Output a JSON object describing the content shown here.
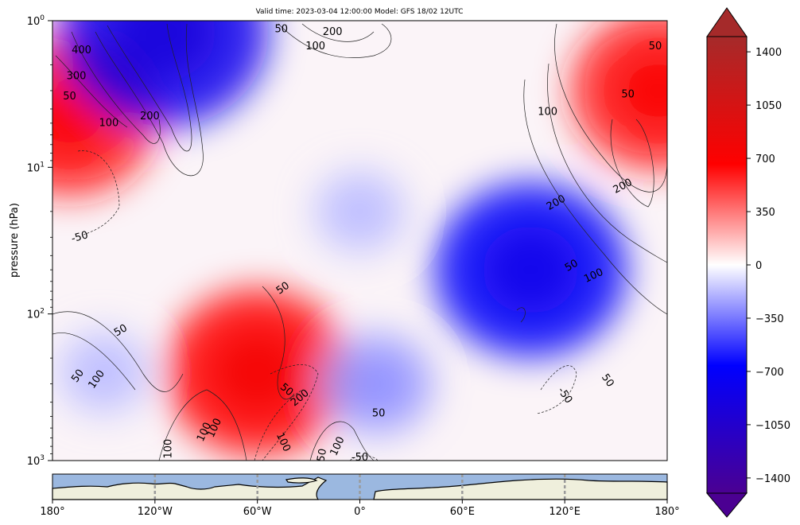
{
  "chart_data": {
    "type": "heatmap",
    "title": "Valid time: 2023-03-04 12:00:00 Model: GFS 18/02 12UTC",
    "ylabel": "pressure (hPa)",
    "yscale": "log",
    "ylim": [
      1000,
      1
    ],
    "xlim": [
      -180,
      180
    ],
    "y_ticks": [
      {
        "value": 1,
        "base": "10",
        "exp": "0"
      },
      {
        "value": 10,
        "base": "10",
        "exp": "1"
      },
      {
        "value": 100,
        "base": "10",
        "exp": "2"
      },
      {
        "value": 1000,
        "base": "10",
        "exp": "3"
      }
    ],
    "x_ticks": [
      {
        "value": -180,
        "label": "180°"
      },
      {
        "value": -120,
        "label": "120°W"
      },
      {
        "value": -60,
        "label": "60°W"
      },
      {
        "value": 0,
        "label": "0°"
      },
      {
        "value": 60,
        "label": "60°E"
      },
      {
        "value": 120,
        "label": "120°E"
      },
      {
        "value": 180,
        "label": "180°"
      }
    ],
    "colorbar": {
      "min": -1500,
      "max": 1500,
      "extend": "both",
      "colors": [
        "#4b0092",
        "#0000ff",
        "#ffffff",
        "#ff0000",
        "#a52a2a"
      ],
      "ticks": [
        {
          "value": 1400,
          "label": "1400"
        },
        {
          "value": 1050,
          "label": "1050"
        },
        {
          "value": 700,
          "label": "700"
        },
        {
          "value": 350,
          "label": "350"
        },
        {
          "value": 0,
          "label": "0"
        },
        {
          "value": -350,
          "label": "−350"
        },
        {
          "value": -700,
          "label": "−700"
        },
        {
          "value": -1050,
          "label": "−1050"
        },
        {
          "value": -1400,
          "label": "−1400"
        }
      ]
    },
    "field_centers": [
      {
        "lon": -170,
        "p": 4.5,
        "value": 600
      },
      {
        "lon": -115,
        "p": 1.2,
        "value": -800
      },
      {
        "lon": -60,
        "p": 250,
        "value": 650
      },
      {
        "lon": 100,
        "p": 50,
        "value": -700
      },
      {
        "lon": 175,
        "p": 3,
        "value": 600
      },
      {
        "lon": 10,
        "p": 300,
        "value": -250
      },
      {
        "lon": -150,
        "p": 250,
        "value": -150
      },
      {
        "lon": 0,
        "p": 20,
        "value": -150
      }
    ],
    "contour_labels": [
      {
        "text": "400",
        "lon": -163,
        "p": 1.6,
        "rot": 0
      },
      {
        "text": "300",
        "lon": -166,
        "p": 2.4,
        "rot": 0
      },
      {
        "text": "50",
        "lon": -170,
        "p": 3.3,
        "rot": 0
      },
      {
        "text": "100",
        "lon": -147,
        "p": 5.0,
        "rot": 0
      },
      {
        "text": "200",
        "lon": -123,
        "p": 4.5,
        "rot": 0
      },
      {
        "text": "50",
        "lon": -46,
        "p": 1.15,
        "rot": 0
      },
      {
        "text": "200",
        "lon": -16,
        "p": 1.2,
        "rot": 0
      },
      {
        "text": "100",
        "lon": -26,
        "p": 1.5,
        "rot": 0
      },
      {
        "text": "100",
        "lon": 110,
        "p": 4.2,
        "rot": 0
      },
      {
        "text": "50",
        "lon": 157,
        "p": 3.2,
        "rot": 0
      },
      {
        "text": "50",
        "lon": 173,
        "p": 1.5,
        "rot": 0
      },
      {
        "text": "200",
        "lon": 154,
        "p": 13.5,
        "rot": -28
      },
      {
        "text": "200",
        "lon": 115,
        "p": 17.5,
        "rot": -30
      },
      {
        "text": "50",
        "lon": 124,
        "p": 47,
        "rot": -30
      },
      {
        "text": "100",
        "lon": 137,
        "p": 55,
        "rot": -25
      },
      {
        "text": "-50",
        "lon": -164,
        "p": 30,
        "rot": -15
      },
      {
        "text": "50",
        "lon": -45,
        "p": 67,
        "rot": -35
      },
      {
        "text": "50",
        "lon": -140,
        "p": 130,
        "rot": -30
      },
      {
        "text": "50",
        "lon": -165,
        "p": 265,
        "rot": -55
      },
      {
        "text": "100",
        "lon": -154,
        "p": 280,
        "rot": -55
      },
      {
        "text": "50",
        "lon": -43,
        "p": 330,
        "rot": 40
      },
      {
        "text": "200",
        "lon": -35,
        "p": 375,
        "rot": -40
      },
      {
        "text": "-50",
        "lon": 120,
        "p": 360,
        "rot": 55
      },
      {
        "text": "50",
        "lon": 145,
        "p": 285,
        "rot": 55
      },
      {
        "text": "50",
        "lon": 11,
        "p": 480,
        "rot": 0
      },
      {
        "text": "100",
        "lon": -85,
        "p": 600,
        "rot": -65
      },
      {
        "text": "100",
        "lon": -91,
        "p": 640,
        "rot": -65
      },
      {
        "text": "100",
        "lon": -45,
        "p": 750,
        "rot": 65
      },
      {
        "text": "100",
        "lon": -13,
        "p": 800,
        "rot": -65
      },
      {
        "text": "100",
        "lon": -112,
        "p": 830,
        "rot": -90
      },
      {
        "text": "50",
        "lon": -22,
        "p": 920,
        "rot": -80
      },
      {
        "text": "-50",
        "lon": 0,
        "p": 960,
        "rot": 0
      }
    ]
  }
}
